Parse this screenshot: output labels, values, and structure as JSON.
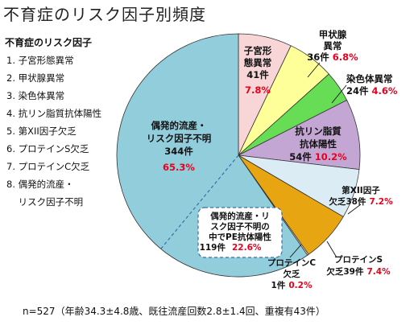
{
  "title": "不育症のリスク因子別頻度",
  "legend": {
    "title": "不育症のリスク因子",
    "items": [
      "1. 子宮形態異常",
      "2. 甲状腺異常",
      "3. 染色体異常",
      "4. 抗リン脂質抗体陽性",
      "5. 第XII因子欠乏",
      "6. プロテインS欠乏",
      "7. プロテインC欠乏",
      "8. 偶発的流産・\n    リスク因子不明"
    ]
  },
  "footer": "n=527（年齢34.3±4.8歳、既往流産回数2.8±1.4回、重複有43件）",
  "colors": {
    "uterine": "#f8d6d8",
    "thyroid": "#ffff99",
    "chromosome": "#66dd55",
    "antiphospholipid": "#c4a6d4",
    "factor12": "#dcecf4",
    "proteinS": "#e8a512",
    "proteinC": "#ffffff",
    "unexplained": "#92cddc",
    "pct_red": "#e8001c",
    "outline": "#333333"
  },
  "chart_data": {
    "type": "pie",
    "title": "不育症のリスク因子別頻度",
    "total": 527,
    "slices": [
      {
        "key": "uterine",
        "label_lines": [
          "子宮形",
          "態異常",
          "41件"
        ],
        "count": 41,
        "percent": "7.8%"
      },
      {
        "key": "thyroid",
        "label_lines": [
          "甲状腺",
          "異常",
          "36件"
        ],
        "count": 36,
        "percent": "6.8%"
      },
      {
        "key": "chromosome",
        "label_lines": [
          "染色体異常",
          "24件"
        ],
        "count": 24,
        "percent": "4.6%"
      },
      {
        "key": "antiphospholipid",
        "label_lines": [
          "抗リン脂質",
          "抗体陽性",
          "54件"
        ],
        "count": 54,
        "percent": "10.2%"
      },
      {
        "key": "factor12",
        "label_lines": [
          "第XII因子",
          "欠乏38件"
        ],
        "count": 38,
        "percent": "7.2%"
      },
      {
        "key": "proteinS",
        "label_lines": [
          "プロテインS",
          "欠乏39件"
        ],
        "count": 39,
        "percent": "7.4%"
      },
      {
        "key": "proteinC",
        "label_lines": [
          "プロテインC",
          "欠乏",
          "1件"
        ],
        "count": 1,
        "percent": "0.2%"
      },
      {
        "key": "unexplained",
        "label_lines": [
          "偶発的流産・",
          "リスク因子不明",
          "344件"
        ],
        "count": 344,
        "percent": "65.3%"
      }
    ],
    "sub_callout": {
      "label_lines": [
        "偶発的流産・リ",
        "スク因子不明の",
        "中でPE抗体陽性",
        "119件"
      ],
      "percent": "22.6%"
    }
  }
}
